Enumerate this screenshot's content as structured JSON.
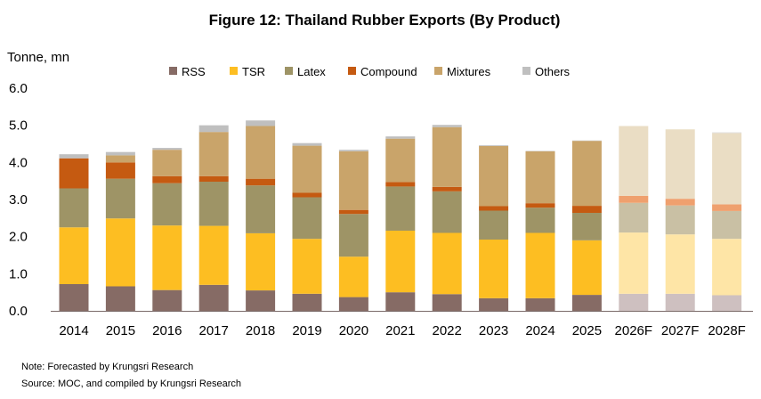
{
  "chart_data": {
    "type": "bar",
    "stacked": true,
    "title": "Figure 12: Thailand Rubber Exports (By Product)",
    "ylabel": "Tonne, mn",
    "xlabel": "",
    "ylim": [
      0,
      6
    ],
    "yticks": [
      "0.0",
      "1.0",
      "2.0",
      "3.0",
      "4.0",
      "5.0",
      "6.0"
    ],
    "grid": false,
    "legend_position": "top",
    "categories": [
      "2014",
      "2015",
      "2016",
      "2017",
      "2018",
      "2019",
      "2020",
      "2021",
      "2022",
      "2023",
      "2024",
      "2025",
      "2026F",
      "2027F",
      "2028F"
    ],
    "forecast_categories": [
      "2026F",
      "2027F",
      "2028F"
    ],
    "series": [
      {
        "name": "RSS",
        "color": "#866B65",
        "forecast_color": "#CEC0C0",
        "values": [
          0.72,
          0.66,
          0.56,
          0.7,
          0.55,
          0.46,
          0.37,
          0.5,
          0.45,
          0.34,
          0.34,
          0.43,
          0.46,
          0.46,
          0.42
        ]
      },
      {
        "name": "TSR",
        "color": "#FDBE22",
        "forecast_color": "#FEE5A6",
        "values": [
          1.53,
          1.83,
          1.74,
          1.59,
          1.54,
          1.48,
          1.09,
          1.66,
          1.65,
          1.58,
          1.76,
          1.47,
          1.65,
          1.6,
          1.52
        ]
      },
      {
        "name": "Latex",
        "color": "#9E9466",
        "forecast_color": "#C9C0A4",
        "values": [
          1.05,
          1.07,
          1.14,
          1.19,
          1.29,
          1.12,
          1.15,
          1.19,
          1.12,
          0.78,
          0.68,
          0.74,
          0.8,
          0.78,
          0.75
        ]
      },
      {
        "name": "Compound",
        "color": "#C55A11",
        "forecast_color": "#EFA06E",
        "values": [
          0.81,
          0.44,
          0.19,
          0.15,
          0.18,
          0.12,
          0.11,
          0.12,
          0.12,
          0.12,
          0.12,
          0.19,
          0.19,
          0.18,
          0.18
        ]
      },
      {
        "name": "Mixtures",
        "color": "#C9A46A",
        "forecast_color": "#EADDC4",
        "values": [
          0.0,
          0.19,
          0.71,
          1.19,
          1.42,
          1.27,
          1.58,
          1.17,
          1.61,
          1.62,
          1.4,
          1.75,
          1.88,
          1.87,
          1.92
        ]
      },
      {
        "name": "Others",
        "color": "#BFBFBF",
        "forecast_color": "#DDDDDD",
        "values": [
          0.11,
          0.09,
          0.05,
          0.18,
          0.15,
          0.07,
          0.04,
          0.06,
          0.06,
          0.02,
          0.01,
          0.01,
          0.0,
          0.0,
          0.02
        ]
      }
    ],
    "notes": [
      "Note: Forecasted by Krungsri Research",
      "Source: MOC, and compiled by Krungsri Research"
    ]
  }
}
